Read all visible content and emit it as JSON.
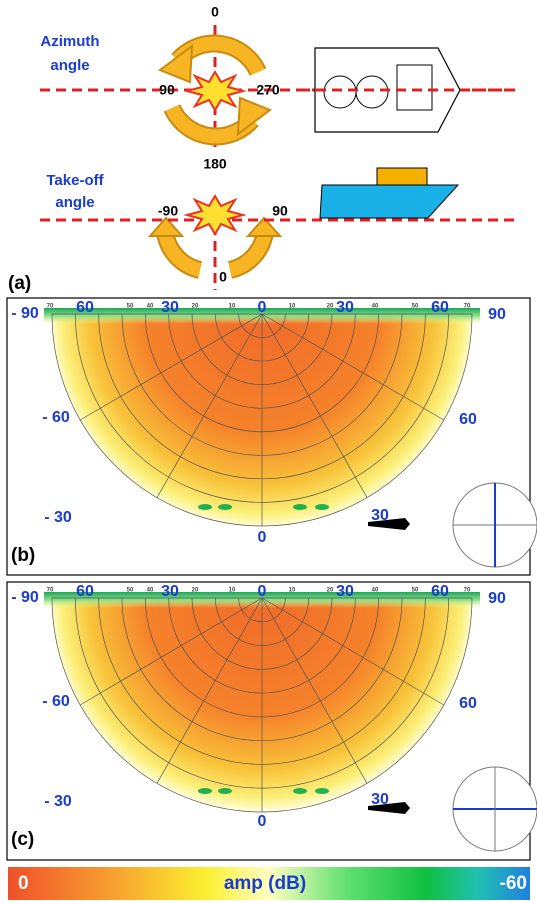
{
  "panel_a": {
    "label": "(a)",
    "azimuth": {
      "title_lines": [
        "Azimuth",
        "angle"
      ],
      "angles": [
        "0",
        "90",
        "270",
        "180"
      ]
    },
    "takeoff": {
      "title_lines": [
        "Take-off",
        "angle"
      ],
      "angles": [
        "-90",
        "90",
        "0"
      ]
    }
  },
  "polar_panels": [
    {
      "label": "(b)",
      "major_labels": [
        "- 90",
        "60",
        "30",
        "0",
        "30",
        "60",
        "90",
        "- 60",
        "60",
        "- 30",
        "30",
        "0"
      ],
      "minor_labels": [
        "70",
        "50",
        "40",
        "20",
        "10",
        "10",
        "20",
        "40",
        "50",
        "70"
      ]
    },
    {
      "label": "(c)",
      "major_labels": [
        "- 90",
        "60",
        "30",
        "0",
        "30",
        "60",
        "90",
        "- 60",
        "60",
        "- 30",
        "30",
        "0"
      ],
      "minor_labels": [
        "70",
        "50",
        "40",
        "20",
        "10",
        "10",
        "20",
        "40",
        "50",
        "70"
      ]
    }
  ],
  "colorbar": {
    "min_label": "0",
    "title": "amp (dB)",
    "max_label": "-60"
  }
}
